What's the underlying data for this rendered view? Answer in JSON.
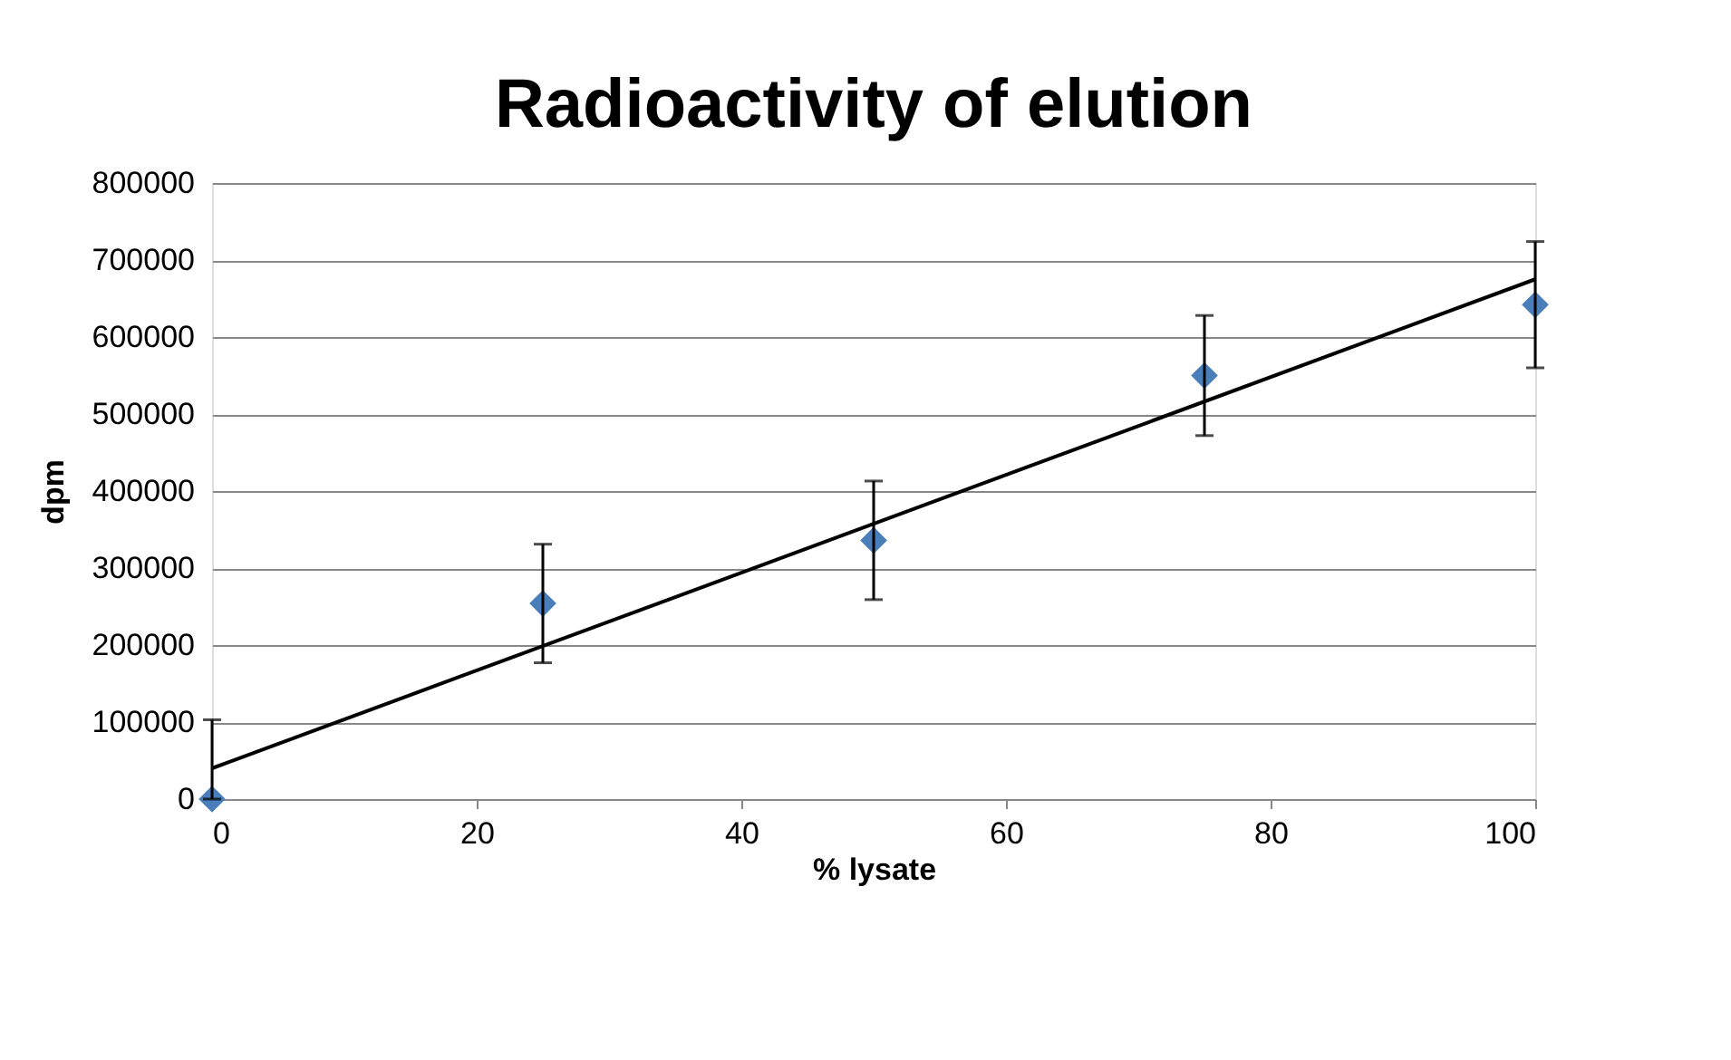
{
  "chart_data": {
    "type": "scatter",
    "title": "Radioactivity of elution",
    "xlabel": "% lysate",
    "ylabel": "dpm",
    "x": [
      0,
      25,
      50,
      75,
      100
    ],
    "series": [
      {
        "color": "#4a7ebb",
        "marker": "diamond",
        "values": [
          0,
          254000,
          336000,
          550000,
          642000
        ],
        "errors": [
          [
            0,
            103000
          ],
          77000,
          77000,
          78000,
          82000
        ]
      },
      {
        "type": "line",
        "color": "#000000",
        "x": [
          0,
          100
        ],
        "values": [
          40000,
          675000
        ]
      }
    ],
    "xlim": [
      0,
      100
    ],
    "xticks": [
      0,
      20,
      40,
      60,
      80,
      100
    ],
    "ylim": [
      0,
      800000
    ],
    "yticks": [
      0,
      100000,
      200000,
      300000,
      400000,
      500000,
      600000,
      700000,
      800000
    ],
    "grid": "y"
  }
}
